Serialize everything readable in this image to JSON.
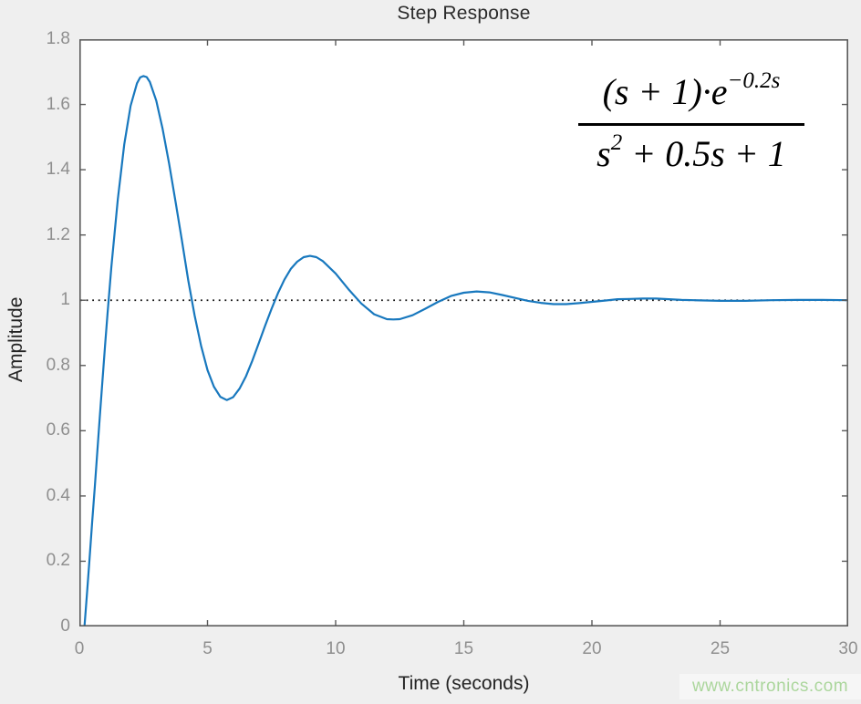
{
  "figure": {
    "title": "Step Response",
    "xlabel": "Time (seconds)",
    "ylabel": "Amplitude",
    "watermark": "www.cntronics.com"
  },
  "formula": {
    "numerator_base": "(s + 1)·e",
    "numerator_exponent": "−0.2s",
    "denominator_var": "s",
    "denominator_exponent": "2",
    "denominator_rest": " + 0.5s + 1"
  },
  "colors": {
    "figure_background": "#efefef",
    "plot_background": "#ffffff",
    "axis": "#5a5a5a",
    "tick_label": "#8f8f8f",
    "title_text": "#2b2b2b",
    "curve": "#1878be",
    "reference_line": "#111111",
    "watermark": "#abd69c",
    "formula_text": "#000000"
  },
  "chart_data": {
    "type": "line",
    "title": "Step Response",
    "xlabel": "Time (seconds)",
    "ylabel": "Amplitude",
    "xlim": [
      0,
      30
    ],
    "ylim": [
      0,
      1.8
    ],
    "x_ticks": [
      0,
      5,
      10,
      15,
      20,
      25,
      30
    ],
    "x_tick_labels": [
      "0",
      "5",
      "10",
      "15",
      "20",
      "25",
      "30"
    ],
    "y_ticks": [
      0,
      0.2,
      0.4,
      0.6,
      0.8,
      1,
      1.2,
      1.4,
      1.6,
      1.8
    ],
    "y_tick_labels": [
      "0",
      "0.2",
      "0.4",
      "0.6",
      "0.8",
      "1",
      "1.2",
      "1.4",
      "1.6",
      "1.8"
    ],
    "grid": false,
    "legend": null,
    "reference_line": {
      "y": 1.0,
      "style": "dotted",
      "color": "#111111"
    },
    "annotations": [
      {
        "text": "(s + 1)·e^(−0.2s) / (s² + 0.5s + 1)",
        "position": "upper right"
      }
    ],
    "series": [
      {
        "name": "step response",
        "color": "#1878be",
        "x": [
          0,
          0.2,
          0.25,
          0.3,
          0.4,
          0.5,
          0.6,
          0.8,
          1.0,
          1.1,
          1.25,
          1.5,
          1.75,
          2.0,
          2.25,
          2.375,
          2.5,
          2.625,
          2.75,
          3.0,
          3.25,
          3.5,
          3.75,
          4.0,
          4.25,
          4.5,
          4.75,
          5.0,
          5.25,
          5.5,
          5.75,
          6.0,
          6.25,
          6.5,
          6.75,
          7.0,
          7.25,
          7.5,
          7.75,
          8.0,
          8.25,
          8.5,
          8.75,
          9.0,
          9.25,
          9.5,
          10.0,
          10.5,
          11.0,
          11.5,
          12.0,
          12.25,
          12.5,
          13.0,
          13.5,
          14.0,
          14.5,
          15.0,
          15.5,
          16.0,
          16.5,
          17.0,
          17.5,
          18.0,
          18.5,
          19.0,
          19.5,
          20.0,
          20.5,
          21.0,
          21.5,
          22.0,
          22.5,
          23.0,
          23.5,
          24.0,
          25.0,
          26.0,
          27.0,
          28.0,
          29.0,
          30.0
        ],
        "y": [
          0,
          0,
          0.05,
          0.102,
          0.208,
          0.318,
          0.426,
          0.646,
          0.858,
          0.959,
          1.102,
          1.31,
          1.477,
          1.596,
          1.665,
          1.683,
          1.687,
          1.684,
          1.669,
          1.612,
          1.525,
          1.419,
          1.303,
          1.184,
          1.061,
          0.953,
          0.86,
          0.786,
          0.735,
          0.704,
          0.694,
          0.703,
          0.729,
          0.767,
          0.815,
          0.868,
          0.922,
          0.974,
          1.022,
          1.063,
          1.096,
          1.118,
          1.132,
          1.136,
          1.132,
          1.12,
          1.082,
          1.034,
          0.99,
          0.957,
          0.942,
          0.941,
          0.942,
          0.954,
          0.974,
          0.995,
          1.013,
          1.023,
          1.027,
          1.024,
          1.016,
          1.007,
          0.998,
          0.992,
          0.988,
          0.988,
          0.991,
          0.995,
          0.999,
          1.003,
          1.004,
          1.005,
          1.005,
          1.003,
          1.001,
          1.0,
          0.998,
          0.998,
          1.0,
          1.001,
          1.001,
          1.0
        ]
      }
    ]
  }
}
